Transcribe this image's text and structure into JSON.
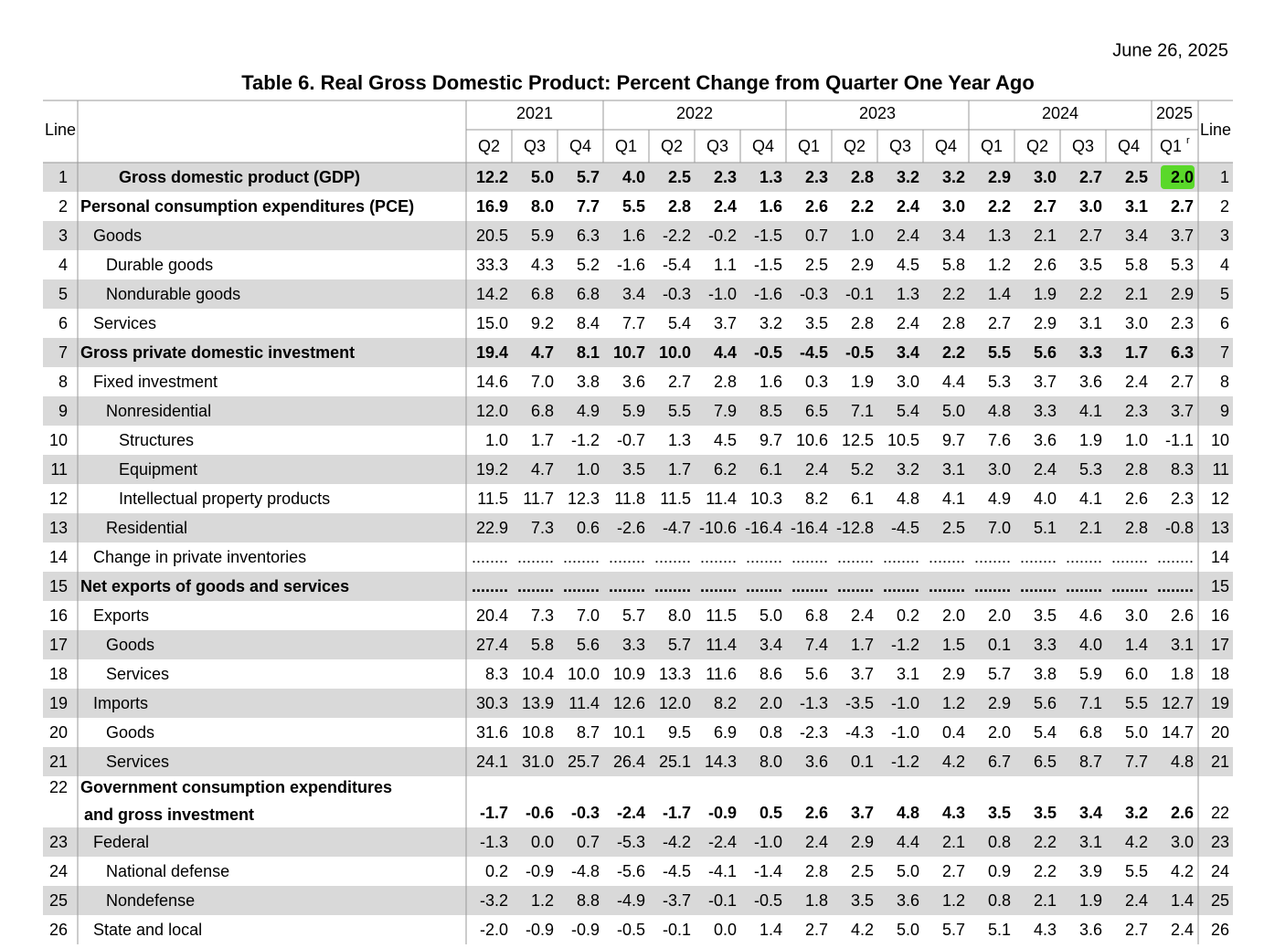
{
  "header": {
    "date": "June 26, 2025",
    "title": "Table 6. Real Gross Domestic Product: Percent Change from Quarter One Year Ago",
    "line_label": "Line",
    "years": [
      "2021",
      "2022",
      "2023",
      "2024",
      "2025"
    ],
    "quarters": [
      "Q2",
      "Q3",
      "Q4",
      "Q1",
      "Q2",
      "Q3",
      "Q4",
      "Q1",
      "Q2",
      "Q3",
      "Q4",
      "Q1",
      "Q2",
      "Q3",
      "Q4",
      "Q1"
    ],
    "revised_mark": "r"
  },
  "table": {
    "rows": [
      {
        "line": 1,
        "label": "Gross domestic product (GDP)",
        "values": [
          "12.2",
          "5.0",
          "5.7",
          "4.0",
          "2.5",
          "2.3",
          "1.3",
          "2.3",
          "2.8",
          "3.2",
          "3.2",
          "2.9",
          "3.0",
          "2.7",
          "2.5",
          "2.0"
        ]
      },
      {
        "line": 2,
        "label": "Personal consumption expenditures (PCE)",
        "values": [
          "16.9",
          "8.0",
          "7.7",
          "5.5",
          "2.8",
          "2.4",
          "1.6",
          "2.6",
          "2.2",
          "2.4",
          "3.0",
          "2.2",
          "2.7",
          "3.0",
          "3.1",
          "2.7"
        ]
      },
      {
        "line": 3,
        "label": "Goods",
        "values": [
          "20.5",
          "5.9",
          "6.3",
          "1.6",
          "-2.2",
          "-0.2",
          "-1.5",
          "0.7",
          "1.0",
          "2.4",
          "3.4",
          "1.3",
          "2.1",
          "2.7",
          "3.4",
          "3.7"
        ]
      },
      {
        "line": 4,
        "label": "Durable goods",
        "values": [
          "33.3",
          "4.3",
          "5.2",
          "-1.6",
          "-5.4",
          "1.1",
          "-1.5",
          "2.5",
          "2.9",
          "4.5",
          "5.8",
          "1.2",
          "2.6",
          "3.5",
          "5.8",
          "5.3"
        ]
      },
      {
        "line": 5,
        "label": "Nondurable goods",
        "values": [
          "14.2",
          "6.8",
          "6.8",
          "3.4",
          "-0.3",
          "-1.0",
          "-1.6",
          "-0.3",
          "-0.1",
          "1.3",
          "2.2",
          "1.4",
          "1.9",
          "2.2",
          "2.1",
          "2.9"
        ]
      },
      {
        "line": 6,
        "label": "Services",
        "values": [
          "15.0",
          "9.2",
          "8.4",
          "7.7",
          "5.4",
          "3.7",
          "3.2",
          "3.5",
          "2.8",
          "2.4",
          "2.8",
          "2.7",
          "2.9",
          "3.1",
          "3.0",
          "2.3"
        ]
      },
      {
        "line": 7,
        "label": "Gross private domestic investment",
        "values": [
          "19.4",
          "4.7",
          "8.1",
          "10.7",
          "10.0",
          "4.4",
          "-0.5",
          "-4.5",
          "-0.5",
          "3.4",
          "2.2",
          "5.5",
          "5.6",
          "3.3",
          "1.7",
          "6.3"
        ]
      },
      {
        "line": 8,
        "label": "Fixed investment",
        "values": [
          "14.6",
          "7.0",
          "3.8",
          "3.6",
          "2.7",
          "2.8",
          "1.6",
          "0.3",
          "1.9",
          "3.0",
          "4.4",
          "5.3",
          "3.7",
          "3.6",
          "2.4",
          "2.7"
        ]
      },
      {
        "line": 9,
        "label": "Nonresidential",
        "values": [
          "12.0",
          "6.8",
          "4.9",
          "5.9",
          "5.5",
          "7.9",
          "8.5",
          "6.5",
          "7.1",
          "5.4",
          "5.0",
          "4.8",
          "3.3",
          "4.1",
          "2.3",
          "3.7"
        ]
      },
      {
        "line": 10,
        "label": "Structures",
        "values": [
          "1.0",
          "1.7",
          "-1.2",
          "-0.7",
          "1.3",
          "4.5",
          "9.7",
          "10.6",
          "12.5",
          "10.5",
          "9.7",
          "7.6",
          "3.6",
          "1.9",
          "1.0",
          "-1.1"
        ]
      },
      {
        "line": 11,
        "label": "Equipment",
        "values": [
          "19.2",
          "4.7",
          "1.0",
          "3.5",
          "1.7",
          "6.2",
          "6.1",
          "2.4",
          "5.2",
          "3.2",
          "3.1",
          "3.0",
          "2.4",
          "5.3",
          "2.8",
          "8.3"
        ]
      },
      {
        "line": 12,
        "label": "Intellectual property products",
        "values": [
          "11.5",
          "11.7",
          "12.3",
          "11.8",
          "11.5",
          "11.4",
          "10.3",
          "8.2",
          "6.1",
          "4.8",
          "4.1",
          "4.9",
          "4.0",
          "4.1",
          "2.6",
          "2.3"
        ]
      },
      {
        "line": 13,
        "label": "Residential",
        "values": [
          "22.9",
          "7.3",
          "0.6",
          "-2.6",
          "-4.7",
          "-10.6",
          "-16.4",
          "-16.4",
          "-12.8",
          "-4.5",
          "2.5",
          "7.0",
          "5.1",
          "2.1",
          "2.8",
          "-0.8"
        ]
      },
      {
        "line": 14,
        "label": "Change in private inventories",
        "values": [
          "........",
          "........",
          "........",
          "........",
          "........",
          "........",
          "........",
          "........",
          "........",
          "........",
          "........",
          "........",
          "........",
          "........",
          "........",
          "........"
        ]
      },
      {
        "line": 15,
        "label": "Net exports of goods and services",
        "values": [
          "........",
          "........",
          "........",
          "........",
          "........",
          "........",
          "........",
          "........",
          "........",
          "........",
          "........",
          "........",
          "........",
          "........",
          "........",
          "........"
        ]
      },
      {
        "line": 16,
        "label": "Exports",
        "values": [
          "20.4",
          "7.3",
          "7.0",
          "5.7",
          "8.0",
          "11.5",
          "5.0",
          "6.8",
          "2.4",
          "0.2",
          "2.0",
          "2.0",
          "3.5",
          "4.6",
          "3.0",
          "2.6"
        ]
      },
      {
        "line": 17,
        "label": "Goods",
        "values": [
          "27.4",
          "5.8",
          "5.6",
          "3.3",
          "5.7",
          "11.4",
          "3.4",
          "7.4",
          "1.7",
          "-1.2",
          "1.5",
          "0.1",
          "3.3",
          "4.0",
          "1.4",
          "3.1"
        ]
      },
      {
        "line": 18,
        "label": "Services",
        "values": [
          "8.3",
          "10.4",
          "10.0",
          "10.9",
          "13.3",
          "11.6",
          "8.6",
          "5.6",
          "3.7",
          "3.1",
          "2.9",
          "5.7",
          "3.8",
          "5.9",
          "6.0",
          "1.8"
        ]
      },
      {
        "line": 19,
        "label": "Imports",
        "values": [
          "30.3",
          "13.9",
          "11.4",
          "12.6",
          "12.0",
          "8.2",
          "2.0",
          "-1.3",
          "-3.5",
          "-1.0",
          "1.2",
          "2.9",
          "5.6",
          "7.1",
          "5.5",
          "12.7"
        ]
      },
      {
        "line": 20,
        "label": "Goods",
        "values": [
          "31.6",
          "10.8",
          "8.7",
          "10.1",
          "9.5",
          "6.9",
          "0.8",
          "-2.3",
          "-4.3",
          "-1.0",
          "0.4",
          "2.0",
          "5.4",
          "6.8",
          "5.0",
          "14.7"
        ]
      },
      {
        "line": 21,
        "label": "Services",
        "values": [
          "24.1",
          "31.0",
          "25.7",
          "26.4",
          "25.1",
          "14.3",
          "8.0",
          "3.6",
          "0.1",
          "-1.2",
          "4.2",
          "6.7",
          "6.5",
          "8.7",
          "7.7",
          "4.8"
        ]
      },
      {
        "line": 22,
        "label": [
          "Government consumption expenditures",
          "and gross investment"
        ],
        "values": [
          "-1.7",
          "-0.6",
          "-0.3",
          "-2.4",
          "-1.7",
          "-0.9",
          "0.5",
          "2.6",
          "3.7",
          "4.8",
          "4.3",
          "3.5",
          "3.5",
          "3.4",
          "3.2",
          "2.6"
        ]
      },
      {
        "line": 23,
        "label": "Federal",
        "values": [
          "-1.3",
          "0.0",
          "0.7",
          "-5.3",
          "-4.2",
          "-2.4",
          "-1.0",
          "2.4",
          "2.9",
          "4.4",
          "2.1",
          "0.8",
          "2.2",
          "3.1",
          "4.2",
          "3.0"
        ]
      },
      {
        "line": 24,
        "label": "National defense",
        "values": [
          "0.2",
          "-0.9",
          "-4.8",
          "-5.6",
          "-4.5",
          "-4.1",
          "-1.4",
          "2.8",
          "2.5",
          "5.0",
          "2.7",
          "0.9",
          "2.2",
          "3.9",
          "5.5",
          "4.2"
        ]
      },
      {
        "line": 25,
        "label": "Nondefense",
        "values": [
          "-3.2",
          "1.2",
          "8.8",
          "-4.9",
          "-3.7",
          "-0.1",
          "-0.5",
          "1.8",
          "3.5",
          "3.6",
          "1.2",
          "0.8",
          "2.1",
          "1.9",
          "2.4",
          "1.4"
        ]
      },
      {
        "line": 26,
        "label": "State and local",
        "values": [
          "-2.0",
          "-0.9",
          "-0.9",
          "-0.5",
          "-0.1",
          "0.0",
          "1.4",
          "2.7",
          "4.2",
          "5.0",
          "5.7",
          "5.1",
          "4.3",
          "3.6",
          "2.7",
          "2.4"
        ]
      }
    ]
  }
}
